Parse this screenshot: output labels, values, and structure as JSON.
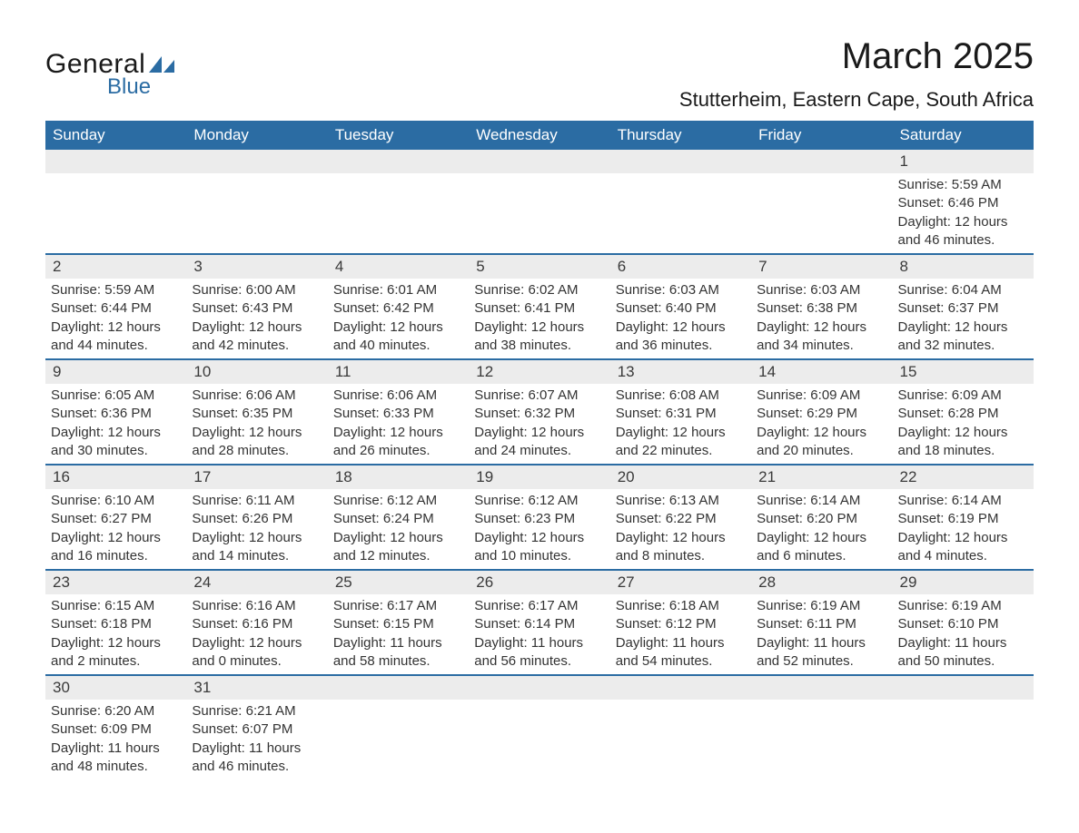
{
  "logo": {
    "word1": "General",
    "word2": "Blue",
    "shape_color": "#2b6ca3",
    "text_color": "#1a1a1a"
  },
  "title": "March 2025",
  "location": "Stutterheim, Eastern Cape, South Africa",
  "colors": {
    "header_bg": "#2b6ca3",
    "header_text": "#ffffff",
    "daynum_bg": "#ececec",
    "row_border": "#2b6ca3",
    "body_text": "#333333",
    "page_bg": "#ffffff"
  },
  "typography": {
    "title_fontsize": 40,
    "location_fontsize": 22,
    "header_fontsize": 17,
    "daynum_fontsize": 17,
    "body_fontsize": 15,
    "font_family": "Arial"
  },
  "day_headers": [
    "Sunday",
    "Monday",
    "Tuesday",
    "Wednesday",
    "Thursday",
    "Friday",
    "Saturday"
  ],
  "field_labels": {
    "sunrise": "Sunrise:",
    "sunset": "Sunset:",
    "daylight": "Daylight:"
  },
  "weeks": [
    [
      null,
      null,
      null,
      null,
      null,
      null,
      {
        "n": "1",
        "sunrise": "5:59 AM",
        "sunset": "6:46 PM",
        "daylight": "12 hours and 46 minutes."
      }
    ],
    [
      {
        "n": "2",
        "sunrise": "5:59 AM",
        "sunset": "6:44 PM",
        "daylight": "12 hours and 44 minutes."
      },
      {
        "n": "3",
        "sunrise": "6:00 AM",
        "sunset": "6:43 PM",
        "daylight": "12 hours and 42 minutes."
      },
      {
        "n": "4",
        "sunrise": "6:01 AM",
        "sunset": "6:42 PM",
        "daylight": "12 hours and 40 minutes."
      },
      {
        "n": "5",
        "sunrise": "6:02 AM",
        "sunset": "6:41 PM",
        "daylight": "12 hours and 38 minutes."
      },
      {
        "n": "6",
        "sunrise": "6:03 AM",
        "sunset": "6:40 PM",
        "daylight": "12 hours and 36 minutes."
      },
      {
        "n": "7",
        "sunrise": "6:03 AM",
        "sunset": "6:38 PM",
        "daylight": "12 hours and 34 minutes."
      },
      {
        "n": "8",
        "sunrise": "6:04 AM",
        "sunset": "6:37 PM",
        "daylight": "12 hours and 32 minutes."
      }
    ],
    [
      {
        "n": "9",
        "sunrise": "6:05 AM",
        "sunset": "6:36 PM",
        "daylight": "12 hours and 30 minutes."
      },
      {
        "n": "10",
        "sunrise": "6:06 AM",
        "sunset": "6:35 PM",
        "daylight": "12 hours and 28 minutes."
      },
      {
        "n": "11",
        "sunrise": "6:06 AM",
        "sunset": "6:33 PM",
        "daylight": "12 hours and 26 minutes."
      },
      {
        "n": "12",
        "sunrise": "6:07 AM",
        "sunset": "6:32 PM",
        "daylight": "12 hours and 24 minutes."
      },
      {
        "n": "13",
        "sunrise": "6:08 AM",
        "sunset": "6:31 PM",
        "daylight": "12 hours and 22 minutes."
      },
      {
        "n": "14",
        "sunrise": "6:09 AM",
        "sunset": "6:29 PM",
        "daylight": "12 hours and 20 minutes."
      },
      {
        "n": "15",
        "sunrise": "6:09 AM",
        "sunset": "6:28 PM",
        "daylight": "12 hours and 18 minutes."
      }
    ],
    [
      {
        "n": "16",
        "sunrise": "6:10 AM",
        "sunset": "6:27 PM",
        "daylight": "12 hours and 16 minutes."
      },
      {
        "n": "17",
        "sunrise": "6:11 AM",
        "sunset": "6:26 PM",
        "daylight": "12 hours and 14 minutes."
      },
      {
        "n": "18",
        "sunrise": "6:12 AM",
        "sunset": "6:24 PM",
        "daylight": "12 hours and 12 minutes."
      },
      {
        "n": "19",
        "sunrise": "6:12 AM",
        "sunset": "6:23 PM",
        "daylight": "12 hours and 10 minutes."
      },
      {
        "n": "20",
        "sunrise": "6:13 AM",
        "sunset": "6:22 PM",
        "daylight": "12 hours and 8 minutes."
      },
      {
        "n": "21",
        "sunrise": "6:14 AM",
        "sunset": "6:20 PM",
        "daylight": "12 hours and 6 minutes."
      },
      {
        "n": "22",
        "sunrise": "6:14 AM",
        "sunset": "6:19 PM",
        "daylight": "12 hours and 4 minutes."
      }
    ],
    [
      {
        "n": "23",
        "sunrise": "6:15 AM",
        "sunset": "6:18 PM",
        "daylight": "12 hours and 2 minutes."
      },
      {
        "n": "24",
        "sunrise": "6:16 AM",
        "sunset": "6:16 PM",
        "daylight": "12 hours and 0 minutes."
      },
      {
        "n": "25",
        "sunrise": "6:17 AM",
        "sunset": "6:15 PM",
        "daylight": "11 hours and 58 minutes."
      },
      {
        "n": "26",
        "sunrise": "6:17 AM",
        "sunset": "6:14 PM",
        "daylight": "11 hours and 56 minutes."
      },
      {
        "n": "27",
        "sunrise": "6:18 AM",
        "sunset": "6:12 PM",
        "daylight": "11 hours and 54 minutes."
      },
      {
        "n": "28",
        "sunrise": "6:19 AM",
        "sunset": "6:11 PM",
        "daylight": "11 hours and 52 minutes."
      },
      {
        "n": "29",
        "sunrise": "6:19 AM",
        "sunset": "6:10 PM",
        "daylight": "11 hours and 50 minutes."
      }
    ],
    [
      {
        "n": "30",
        "sunrise": "6:20 AM",
        "sunset": "6:09 PM",
        "daylight": "11 hours and 48 minutes."
      },
      {
        "n": "31",
        "sunrise": "6:21 AM",
        "sunset": "6:07 PM",
        "daylight": "11 hours and 46 minutes."
      },
      null,
      null,
      null,
      null,
      null
    ]
  ]
}
